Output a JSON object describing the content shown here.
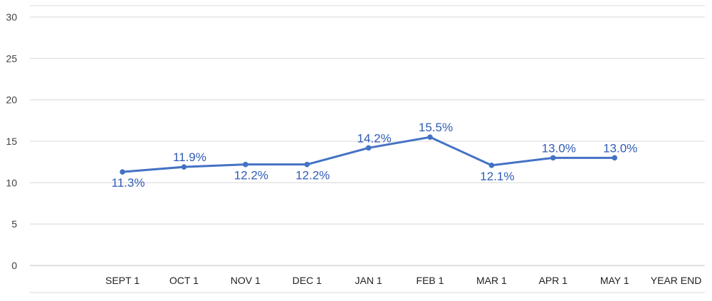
{
  "chart_data": {
    "type": "line",
    "title": "",
    "xlabel": "",
    "ylabel": "",
    "categories": [
      "SEPT 1",
      "OCT 1",
      "NOV 1",
      "DEC 1",
      "JAN 1",
      "FEB 1",
      "MAR 1",
      "APR 1",
      "MAY 1",
      "YEAR END"
    ],
    "ylim": [
      0,
      30
    ],
    "yticks": [
      "0",
      "5",
      "10",
      "15",
      "20",
      "25",
      "30"
    ],
    "grid": true,
    "legend": "none",
    "series": [
      {
        "values": [
          11.3,
          11.9,
          12.2,
          12.2,
          14.2,
          15.5,
          12.1,
          13.0,
          13.0,
          null
        ],
        "labels": [
          "11.3%",
          "11.9%",
          "12.2%",
          "12.2%",
          "14.2%",
          "15.5%",
          "12.1%",
          "13.0%",
          "13.0%",
          ""
        ],
        "color": "#4472C4"
      }
    ],
    "colors": {
      "line": "#4472C4",
      "label": "#2F5BB5",
      "grid": "#D9D9D9",
      "axis": "#BFBFBF"
    }
  }
}
